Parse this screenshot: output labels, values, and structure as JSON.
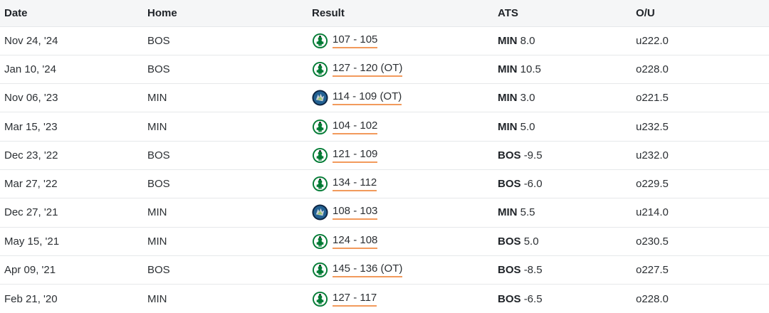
{
  "headers": {
    "date": "Date",
    "home": "Home",
    "result": "Result",
    "ats": "ATS",
    "ou": "O/U"
  },
  "colors": {
    "celtics": "#007a33",
    "timberwolves": "#0c2340",
    "underline": "#f29a5c"
  },
  "rows": [
    {
      "date": "Nov 24, '24",
      "home": "BOS",
      "winner_logo": "celtics-logo-icon",
      "score": "107 - 105",
      "ats_team": "MIN",
      "ats_line": "8.0",
      "ou": "u222.0"
    },
    {
      "date": "Jan 10, '24",
      "home": "BOS",
      "winner_logo": "celtics-logo-icon",
      "score": "127 - 120 (OT)",
      "ats_team": "MIN",
      "ats_line": "10.5",
      "ou": "o228.0"
    },
    {
      "date": "Nov 06, '23",
      "home": "MIN",
      "winner_logo": "timberwolves-logo-icon",
      "score": "114 - 109 (OT)",
      "ats_team": "MIN",
      "ats_line": "3.0",
      "ou": "o221.5"
    },
    {
      "date": "Mar 15, '23",
      "home": "MIN",
      "winner_logo": "celtics-logo-icon",
      "score": "104 - 102",
      "ats_team": "MIN",
      "ats_line": "5.0",
      "ou": "u232.5"
    },
    {
      "date": "Dec 23, '22",
      "home": "BOS",
      "winner_logo": "celtics-logo-icon",
      "score": "121 - 109",
      "ats_team": "BOS",
      "ats_line": "-9.5",
      "ou": "u232.0"
    },
    {
      "date": "Mar 27, '22",
      "home": "BOS",
      "winner_logo": "celtics-logo-icon",
      "score": "134 - 112",
      "ats_team": "BOS",
      "ats_line": "-6.0",
      "ou": "o229.5"
    },
    {
      "date": "Dec 27, '21",
      "home": "MIN",
      "winner_logo": "timberwolves-logo-icon",
      "score": "108 - 103",
      "ats_team": "MIN",
      "ats_line": "5.5",
      "ou": "u214.0"
    },
    {
      "date": "May 15, '21",
      "home": "MIN",
      "winner_logo": "celtics-logo-icon",
      "score": "124 - 108",
      "ats_team": "BOS",
      "ats_line": "5.0",
      "ou": "o230.5"
    },
    {
      "date": "Apr 09, '21",
      "home": "BOS",
      "winner_logo": "celtics-logo-icon",
      "score": "145 - 136 (OT)",
      "ats_team": "BOS",
      "ats_line": "-8.5",
      "ou": "o227.5"
    },
    {
      "date": "Feb 21, '20",
      "home": "MIN",
      "winner_logo": "celtics-logo-icon",
      "score": "127 - 117",
      "ats_team": "BOS",
      "ats_line": "-6.5",
      "ou": "o228.0"
    }
  ]
}
